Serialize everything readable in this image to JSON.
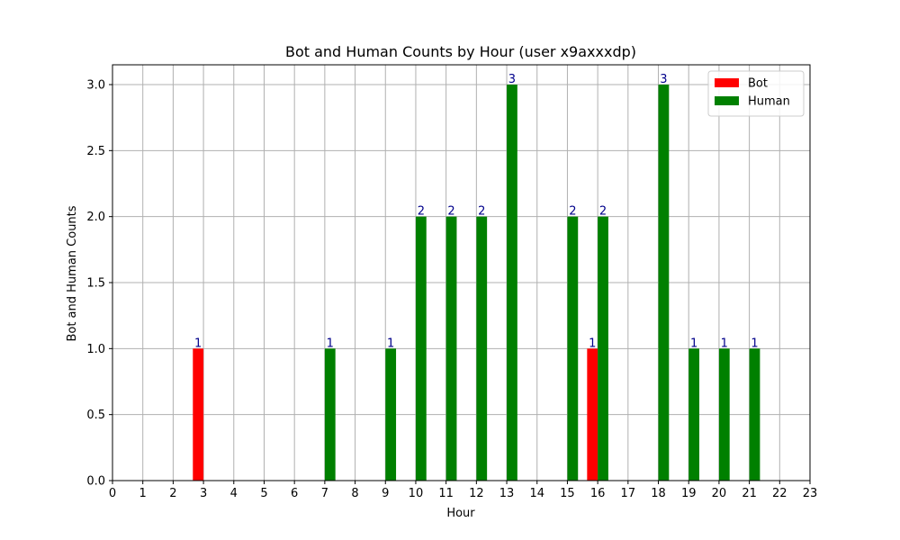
{
  "chart_data": {
    "type": "bar",
    "title": "Bot and Human Counts by Hour (user x9axxxdp)",
    "xlabel": "Hour",
    "ylabel": "Bot and Human Counts",
    "x": [
      0,
      1,
      2,
      3,
      4,
      5,
      6,
      7,
      8,
      9,
      10,
      11,
      12,
      13,
      14,
      15,
      16,
      17,
      18,
      19,
      20,
      21,
      22,
      23
    ],
    "xlim": [
      0,
      23
    ],
    "ylim": [
      0,
      3.15
    ],
    "yticks": [
      "0.0",
      "0.5",
      "1.0",
      "1.5",
      "2.0",
      "2.5",
      "3.0"
    ],
    "grid": true,
    "legend_position": "top-right",
    "label_color": "#00008b",
    "series": [
      {
        "name": "Bot",
        "color": "#ff0000",
        "values": [
          0,
          0,
          0,
          1,
          0,
          0,
          0,
          0,
          0,
          0,
          0,
          0,
          0,
          0,
          0,
          0,
          1,
          0,
          0,
          0,
          0,
          0,
          0,
          0
        ]
      },
      {
        "name": "Human",
        "color": "#008000",
        "values": [
          0,
          0,
          0,
          0,
          0,
          0,
          0,
          1,
          0,
          1,
          2,
          2,
          2,
          3,
          0,
          2,
          2,
          0,
          3,
          1,
          1,
          1,
          0,
          0
        ]
      }
    ]
  }
}
